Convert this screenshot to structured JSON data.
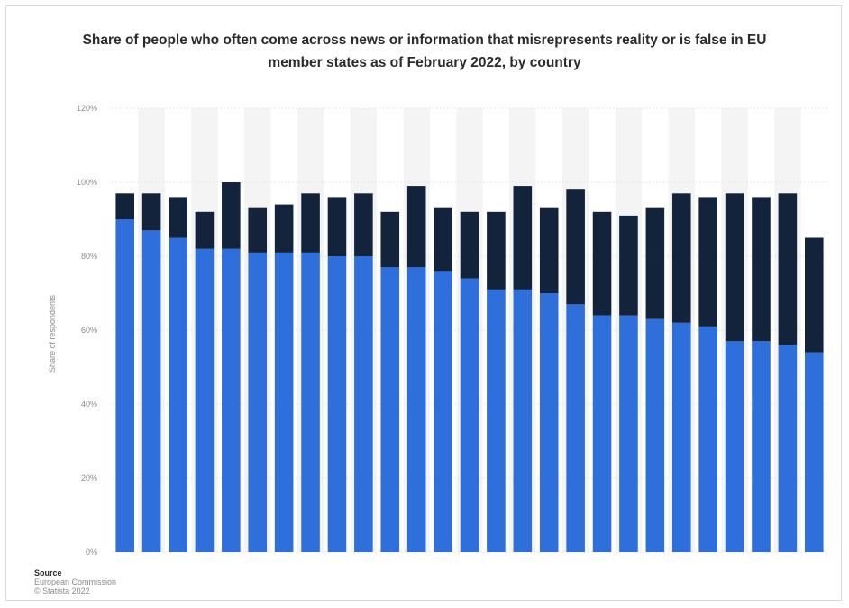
{
  "chart_data": {
    "type": "bar",
    "stacked": true,
    "title": "Share of people who often come across news or information that misrepresents reality or is false in EU member states as of February 2022, by country",
    "ylabel": "Share of respondents",
    "xlabel": "",
    "ylim": [
      0,
      120
    ],
    "yticks": [
      0,
      20,
      40,
      60,
      80,
      100,
      120
    ],
    "ytick_labels": [
      "0%",
      "20%",
      "40%",
      "60%",
      "80%",
      "100%",
      "120%"
    ],
    "grid": true,
    "legend": "none",
    "categories": [
      "",
      "",
      "",
      "",
      "",
      "",
      "",
      "",
      "",
      "",
      "",
      "",
      "",
      "",
      "",
      "",
      "",
      "",
      "",
      "",
      "",
      "",
      "",
      "",
      "",
      "",
      ""
    ],
    "series": [
      {
        "color": "#2f6fdc",
        "values": [
          90,
          87,
          85,
          82,
          82,
          81,
          81,
          81,
          80,
          80,
          77,
          77,
          76,
          74,
          71,
          71,
          70,
          67,
          64,
          64,
          63,
          62,
          61,
          57,
          57,
          56,
          54
        ]
      },
      {
        "color": "#12233b",
        "values": [
          7,
          10,
          11,
          10,
          18,
          12,
          13,
          16,
          16,
          17,
          15,
          22,
          17,
          18,
          21,
          28,
          23,
          31,
          28,
          27,
          30,
          35,
          35,
          40,
          39,
          41,
          31
        ]
      }
    ]
  },
  "source": {
    "heading": "Source",
    "line1": "European Commission",
    "line2": "© Statista 2022"
  }
}
